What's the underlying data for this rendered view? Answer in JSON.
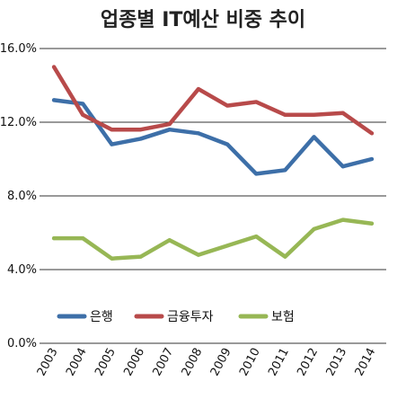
{
  "chart_data": {
    "type": "line",
    "title": "업종별 IT예산 비중 추이",
    "categories": [
      "2003",
      "2004",
      "2005",
      "2006",
      "2007",
      "2008",
      "2009",
      "2010",
      "2011",
      "2012",
      "2013",
      "2014"
    ],
    "ylim": [
      0,
      16
    ],
    "yticks": [
      0,
      4,
      8,
      12,
      16
    ],
    "ytick_labels": [
      "0.0%",
      "4.0%",
      "8.0%",
      "12.0%",
      "16.0%"
    ],
    "grid": true,
    "legend_position": "bottom-left",
    "series": [
      {
        "name": "은행",
        "color": "#3d6fa8",
        "values": [
          13.2,
          13.0,
          10.8,
          11.1,
          11.6,
          11.4,
          10.8,
          9.2,
          9.4,
          11.2,
          9.6,
          10.0
        ]
      },
      {
        "name": "금융투자",
        "color": "#b84a4a",
        "values": [
          15.0,
          12.4,
          11.6,
          11.6,
          11.9,
          13.8,
          12.9,
          13.1,
          12.4,
          12.4,
          12.5,
          11.4
        ]
      },
      {
        "name": "보험",
        "color": "#97b755",
        "values": [
          5.7,
          5.7,
          4.6,
          4.7,
          5.6,
          4.8,
          5.3,
          5.8,
          4.7,
          6.2,
          6.7,
          6.5
        ]
      }
    ]
  }
}
